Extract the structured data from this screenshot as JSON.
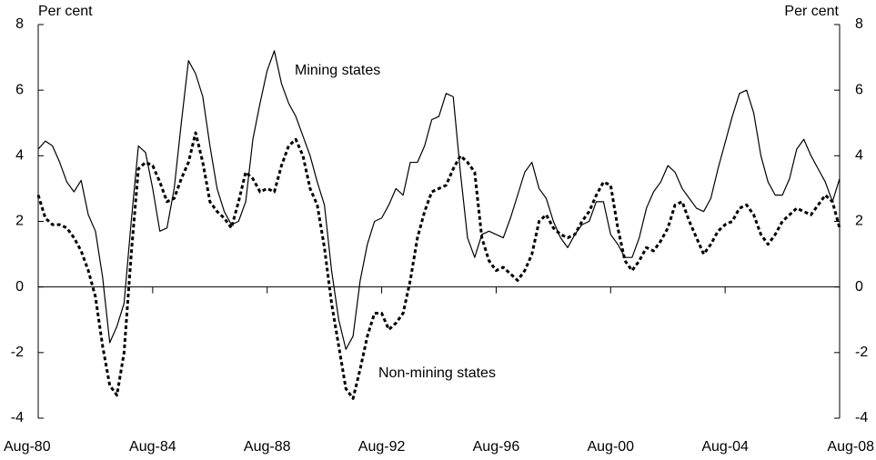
{
  "chart_data": {
    "type": "line",
    "y_label": "Per cent",
    "y2_label": "Per cent",
    "annotations": [
      "Mining states",
      "Non-mining states"
    ],
    "categories": [
      "Aug-80",
      null,
      null,
      null,
      null,
      null,
      null,
      null,
      null,
      null,
      null,
      null,
      null,
      null,
      null,
      null,
      "Aug-84",
      null,
      null,
      null,
      null,
      null,
      null,
      null,
      null,
      null,
      null,
      null,
      null,
      null,
      null,
      null,
      "Aug-88",
      null,
      null,
      null,
      null,
      null,
      null,
      null,
      null,
      null,
      null,
      null,
      null,
      null,
      null,
      null,
      "Aug-92",
      null,
      null,
      null,
      null,
      null,
      null,
      null,
      null,
      null,
      null,
      null,
      null,
      null,
      null,
      null,
      "Aug-96",
      null,
      null,
      null,
      null,
      null,
      null,
      null,
      null,
      null,
      null,
      null,
      null,
      null,
      null,
      null,
      "Aug-00",
      null,
      null,
      null,
      null,
      null,
      null,
      null,
      null,
      null,
      null,
      null,
      null,
      null,
      null,
      null,
      "Aug-04",
      null,
      null,
      null,
      null,
      null,
      null,
      null,
      null,
      null,
      null,
      null,
      null,
      null,
      null,
      null,
      "Aug-08"
    ],
    "series": [
      {
        "name": "Mining states",
        "color": "#000000",
        "dash": false,
        "values": [
          4.2,
          4.45,
          4.3,
          3.8,
          3.2,
          2.9,
          3.25,
          2.2,
          1.7,
          0.3,
          -1.7,
          -1.2,
          -0.5,
          2.0,
          4.3,
          4.1,
          3.0,
          1.7,
          1.8,
          3.0,
          5.0,
          6.9,
          6.5,
          5.8,
          4.3,
          3.0,
          2.3,
          1.9,
          2.0,
          2.6,
          4.5,
          5.6,
          6.6,
          7.2,
          6.2,
          5.6,
          5.2,
          4.6,
          4.0,
          3.2,
          2.5,
          0.5,
          -1.0,
          -1.9,
          -1.5,
          0.2,
          1.3,
          2.0,
          2.1,
          2.5,
          3.0,
          2.8,
          3.8,
          3.8,
          4.3,
          5.1,
          5.2,
          5.9,
          5.8,
          3.5,
          1.5,
          0.9,
          1.6,
          1.7,
          1.6,
          1.5,
          2.1,
          2.8,
          3.5,
          3.8,
          3.0,
          2.7,
          2.0,
          1.5,
          1.2,
          1.6,
          1.9,
          2.0,
          2.6,
          2.6,
          1.6,
          1.3,
          0.9,
          0.9,
          1.5,
          2.4,
          2.9,
          3.2,
          3.7,
          3.5,
          3.0,
          2.7,
          2.4,
          2.3,
          2.7,
          3.6,
          4.4,
          5.2,
          5.9,
          6.0,
          5.3,
          4.0,
          3.2,
          2.8,
          2.8,
          3.3,
          4.2,
          4.5,
          4.0,
          3.6,
          3.2,
          2.6,
          3.3
        ]
      },
      {
        "name": "Non-mining states",
        "color": "#000000",
        "dash": true,
        "values": [
          2.8,
          2.1,
          1.9,
          1.9,
          1.8,
          1.5,
          1.1,
          0.5,
          -0.3,
          -1.8,
          -3.0,
          -3.3,
          -2.0,
          1.0,
          3.6,
          3.8,
          3.7,
          3.2,
          2.6,
          2.7,
          3.3,
          3.8,
          4.7,
          3.8,
          2.6,
          2.3,
          2.1,
          1.8,
          2.6,
          3.5,
          3.3,
          2.9,
          3.0,
          2.9,
          3.7,
          4.3,
          4.5,
          4.0,
          3.0,
          2.5,
          1.2,
          -0.5,
          -1.8,
          -3.1,
          -3.4,
          -2.5,
          -1.5,
          -0.8,
          -0.8,
          -1.3,
          -1.1,
          -0.8,
          0.2,
          1.5,
          2.3,
          2.9,
          3.0,
          3.1,
          3.6,
          4.0,
          3.8,
          3.5,
          1.5,
          0.8,
          0.5,
          0.6,
          0.4,
          0.2,
          0.5,
          1.0,
          2.0,
          2.2,
          1.8,
          1.6,
          1.5,
          1.6,
          2.0,
          2.3,
          2.8,
          3.2,
          3.1,
          1.8,
          0.8,
          0.5,
          0.8,
          1.2,
          1.1,
          1.4,
          1.8,
          2.5,
          2.6,
          2.0,
          1.5,
          1.0,
          1.3,
          1.7,
          1.9,
          2.0,
          2.4,
          2.5,
          2.2,
          1.6,
          1.3,
          1.6,
          2.0,
          2.2,
          2.4,
          2.3,
          2.2,
          2.5,
          2.8,
          2.6,
          1.8
        ]
      }
    ],
    "ylim": [
      -4,
      8
    ],
    "yticks": [
      -4,
      -2,
      0,
      2,
      4,
      6,
      8
    ],
    "y2lim": [
      -4,
      8
    ],
    "y2ticks": [
      -4,
      -2,
      0,
      2,
      4,
      6,
      8
    ],
    "grid": false
  }
}
